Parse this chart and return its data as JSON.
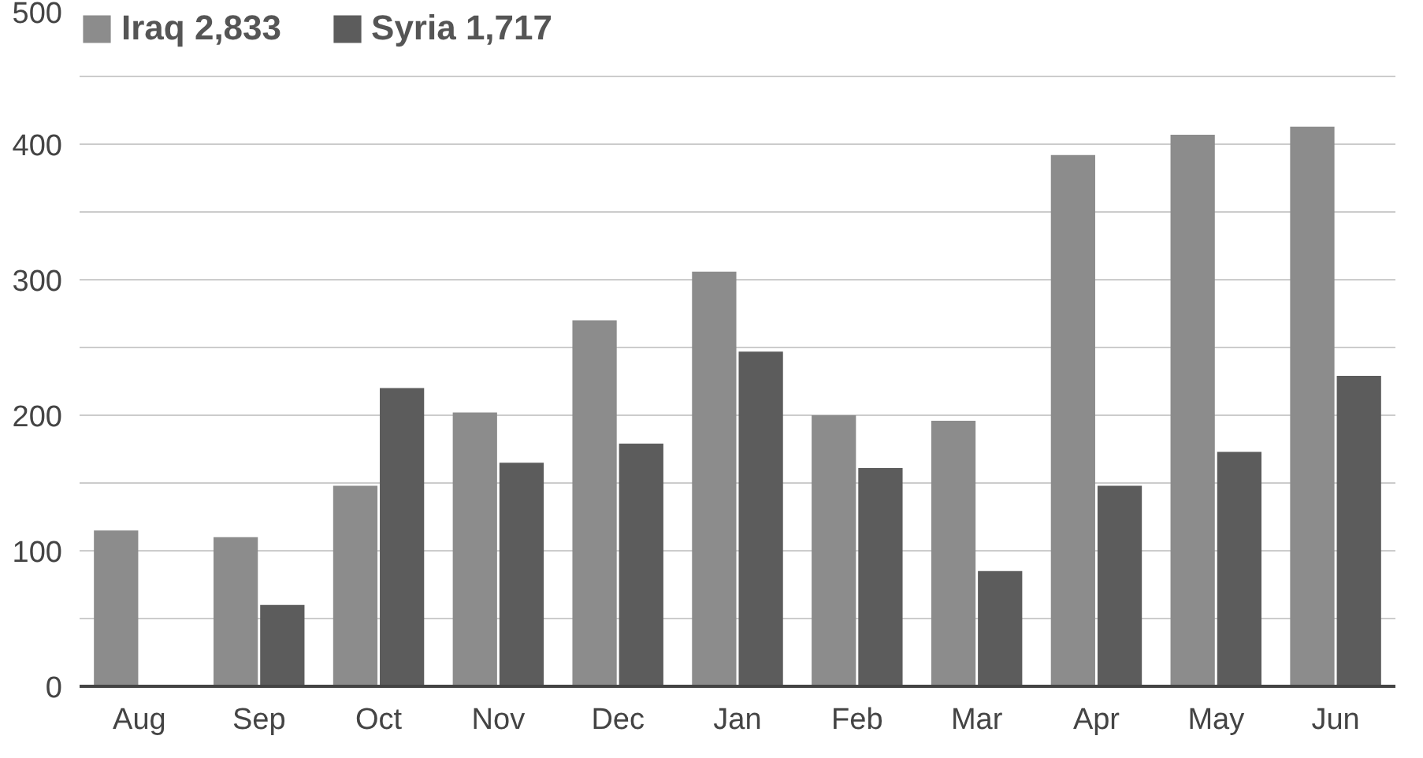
{
  "chart_data": {
    "type": "bar",
    "categories": [
      "Aug",
      "Sep",
      "Oct",
      "Nov",
      "Dec",
      "Jan",
      "Feb",
      "Mar",
      "Apr",
      "May",
      "Jun"
    ],
    "series": [
      {
        "name": "Iraq 2,833",
        "color": "#8c8c8c",
        "values": [
          115,
          110,
          148,
          202,
          270,
          306,
          200,
          196,
          392,
          407,
          413
        ]
      },
      {
        "name": "Syria 1,717",
        "color": "#5c5c5c",
        "values": [
          0,
          60,
          220,
          165,
          179,
          247,
          161,
          85,
          148,
          173,
          229
        ]
      }
    ],
    "ylim": [
      0,
      500
    ],
    "yticks": [
      0,
      {
        "value": 50,
        "label": null
      },
      100,
      {
        "value": 150,
        "label": null
      },
      200,
      {
        "value": 250,
        "label": null
      },
      300,
      {
        "value": 350,
        "label": null
      },
      400,
      {
        "value": 450,
        "label": null
      },
      500
    ],
    "grid": "y",
    "legend": "top left"
  }
}
